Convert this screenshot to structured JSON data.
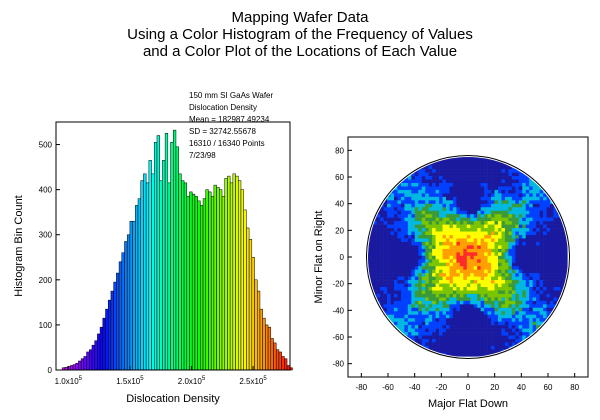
{
  "figure": {
    "title_lines": [
      "Mapping Wafer Data",
      "Using a Color Histogram of the Frequency of Values",
      "and a Color Plot of the Locations of Each Value"
    ]
  },
  "chart_data": [
    {
      "type": "bar",
      "xlabel": "Dislocation Density",
      "ylabel": "Histogram Bin Count",
      "xlim": [
        90000,
        280000
      ],
      "ylim": [
        0,
        550
      ],
      "x_ticks": [
        100000,
        150000,
        200000,
        250000
      ],
      "x_tick_labels": [
        {
          "mant": "1.0x10",
          "exp": "5"
        },
        {
          "mant": "1.5x10",
          "exp": "5"
        },
        {
          "mant": "2.0x10",
          "exp": "5"
        },
        {
          "mant": "2.5x10",
          "exp": "5"
        }
      ],
      "y_ticks": [
        0,
        100,
        200,
        300,
        400,
        500
      ],
      "bin_start": 95000,
      "bin_width": 2200,
      "values": [
        5,
        6,
        8,
        10,
        12,
        15,
        20,
        25,
        30,
        40,
        45,
        55,
        65,
        80,
        95,
        115,
        135,
        155,
        175,
        195,
        215,
        240,
        260,
        285,
        300,
        330,
        330,
        365,
        380,
        420,
        435,
        415,
        465,
        435,
        505,
        520,
        420,
        465,
        525,
        415,
        505,
        532,
        495,
        435,
        420,
        415,
        385,
        395,
        390,
        385,
        375,
        365,
        380,
        400,
        395,
        385,
        410,
        405,
        400,
        385,
        425,
        430,
        415,
        435,
        430,
        420,
        400,
        355,
        315,
        290,
        250,
        200,
        175,
        135,
        115,
        100,
        95,
        70,
        60,
        45,
        40,
        30,
        25,
        10,
        5
      ],
      "annotation": [
        "150 mm SI GaAs Wafer",
        "Dislocation Density",
        "Mean = 182987.49234",
        "SD = 32742.55678",
        "16310 / 16340 Points",
        "7/23/98"
      ]
    },
    {
      "type": "heatmap",
      "xlabel": "Major Flat Down",
      "ylabel": "Minor Flat on Right",
      "xlim": [
        -90,
        90
      ],
      "ylim": [
        -90,
        90
      ],
      "x_ticks": [
        -80,
        -60,
        -40,
        -20,
        0,
        20,
        40,
        60,
        80
      ],
      "y_ticks": [
        -80,
        -60,
        -40,
        -20,
        0,
        20,
        40,
        60,
        80
      ],
      "wafer_radius": 75,
      "colors": [
        "#3a9a3a",
        "#7ac400",
        "#ffff00",
        "#ffa000",
        "#ff2a2a",
        "#00b8e0",
        "#0040ff",
        "#1a1aa0"
      ]
    }
  ]
}
